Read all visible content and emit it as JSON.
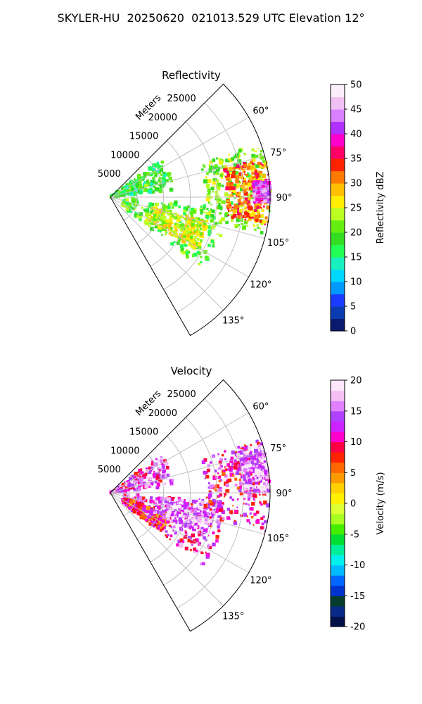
{
  "title": "SKYLER-HU  20250620  021013.529 UTC Elevation 12°",
  "colors": {
    "reflectivity_cmap": [
      "#0b1a6e",
      "#0a3bb0",
      "#1b3cff",
      "#0099ff",
      "#00d7ff",
      "#19f0c0",
      "#22ff55",
      "#33dd22",
      "#66ee11",
      "#bbff22",
      "#ffee00",
      "#ffc000",
      "#ff7a00",
      "#ff2200",
      "#ff0066",
      "#ff00cc",
      "#b030ff",
      "#d880ff",
      "#f0c0f4",
      "#fbeefb"
    ],
    "velocity_cmap": [
      "#04104a",
      "#0a2a88",
      "#063c2e",
      "#0033cc",
      "#0066ff",
      "#00bbff",
      "#00f0ee",
      "#00ee99",
      "#00dd33",
      "#44ee00",
      "#aaff22",
      "#ddff33",
      "#fff000",
      "#ffd000",
      "#ff9900",
      "#ff6600",
      "#ff2200",
      "#ff0044",
      "#ff00cc",
      "#cc22ff",
      "#b040ff",
      "#e080ff",
      "#f4c0f4",
      "#fbe6fb"
    ]
  },
  "chart_data": [
    {
      "type": "heatmap",
      "projection": "polar",
      "title": "Reflectivity",
      "radial_label": "Meters",
      "radial_ticks": [
        "5000",
        "10000",
        "15000",
        "20000",
        "25000"
      ],
      "radial_range": [
        0,
        30000
      ],
      "angular_range": [
        45,
        150
      ],
      "angular_ticks": [
        "60°",
        "75°",
        "90°",
        "105°",
        "120°",
        "135°"
      ],
      "grid": true,
      "colorbar": {
        "label": "Reflectivity dBZ",
        "range": [
          0,
          50
        ],
        "ticks": [
          "0",
          "5",
          "10",
          "15",
          "20",
          "25",
          "30",
          "35",
          "40",
          "45",
          "50"
        ]
      },
      "echo_regions": [
        {
          "az": [
            53,
            84
          ],
          "range": [
            0,
            12000
          ],
          "value": 18
        },
        {
          "az": [
            94,
            128
          ],
          "range": [
            2500,
            22000
          ],
          "value": 20
        },
        {
          "az": [
            104,
            122
          ],
          "range": [
            8000,
            19000
          ],
          "value": 25
        },
        {
          "az": [
            70,
            104
          ],
          "range": [
            18000,
            30000
          ],
          "value": 22
        },
        {
          "az": [
            76,
            100
          ],
          "range": [
            22000,
            30000
          ],
          "value": 32
        },
        {
          "az": [
            84,
            92
          ],
          "range": [
            27000,
            30000
          ],
          "value": 42
        }
      ]
    },
    {
      "type": "heatmap",
      "projection": "polar",
      "title": "Velocity",
      "radial_label": "Meters",
      "radial_ticks": [
        "5000",
        "10000",
        "15000",
        "20000",
        "25000"
      ],
      "radial_range": [
        0,
        30000
      ],
      "angular_range": [
        45,
        150
      ],
      "angular_ticks": [
        "60°",
        "75°",
        "90°",
        "105°",
        "120°",
        "135°"
      ],
      "grid": true,
      "colorbar": {
        "label": "Velocity (m/s)",
        "range": [
          -20,
          20
        ],
        "ticks": [
          "-20",
          "-15",
          "-10",
          "-5",
          "0",
          "5",
          "10",
          "15",
          "20"
        ]
      },
      "echo_regions": [
        {
          "az": [
            53,
            84
          ],
          "range": [
            0,
            12000
          ],
          "value": 13
        },
        {
          "az": [
            94,
            128
          ],
          "range": [
            2500,
            22000
          ],
          "value": 12
        },
        {
          "az": [
            110,
            128
          ],
          "range": [
            3000,
            12000
          ],
          "value": 9
        },
        {
          "az": [
            96,
            115
          ],
          "range": [
            9000,
            20000
          ],
          "value": 16
        },
        {
          "az": [
            70,
            104
          ],
          "range": [
            18000,
            30000
          ],
          "value": 11
        },
        {
          "az": [
            72,
            90
          ],
          "range": [
            25000,
            30000
          ],
          "value": 16
        }
      ]
    }
  ]
}
